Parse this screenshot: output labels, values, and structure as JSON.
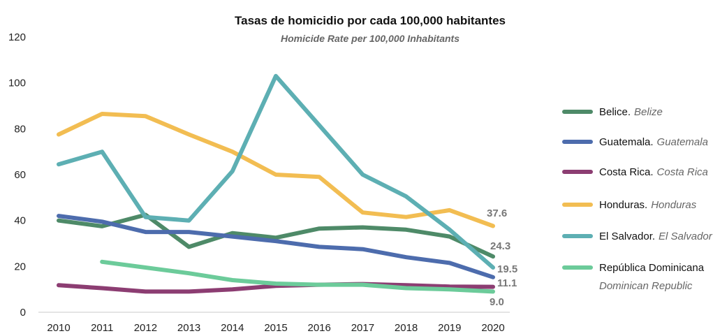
{
  "chart_data": {
    "type": "line",
    "title": "Tasas de homicidio por cada 100,000 habitantes",
    "subtitle": "Homicide Rate per 100,000 Inhabitants",
    "x": [
      2010,
      2011,
      2012,
      2013,
      2014,
      2015,
      2016,
      2017,
      2018,
      2019,
      2020
    ],
    "ylim": [
      0,
      120
    ],
    "yticks": [
      0,
      20,
      40,
      60,
      80,
      100,
      120
    ],
    "grid": false,
    "legend_position": "right",
    "series": [
      {
        "name": "Belice.",
        "name_en": "Belize",
        "color": "#4e8a68",
        "values": [
          40,
          37.5,
          42.5,
          28.5,
          34.5,
          32.5,
          36.5,
          37,
          36,
          33,
          24.3
        ],
        "end_label": "24.3"
      },
      {
        "name": "Guatemala.",
        "name_en": "Guatemala",
        "color": "#4d6cad",
        "values": [
          42,
          39.5,
          35,
          35,
          33,
          31,
          28.5,
          27.5,
          24,
          21.5,
          15.3
        ],
        "end_label": ""
      },
      {
        "name": "Costa Rica.",
        "name_en": "Costa Rica",
        "color": "#8c3d72",
        "values": [
          11.8,
          10.5,
          9,
          9,
          10,
          11.5,
          12,
          12.3,
          11.8,
          11.2,
          11.1
        ],
        "end_label": "11.1"
      },
      {
        "name": "Honduras.",
        "name_en": "Honduras",
        "color": "#f2bd52",
        "values": [
          77.5,
          86.5,
          85.5,
          77.5,
          70,
          60,
          59,
          43.5,
          41.5,
          44.5,
          37.6
        ],
        "end_label": "37.6"
      },
      {
        "name": "El Salvador.",
        "name_en": "El Salvador",
        "color": "#5dafb3",
        "values": [
          64.5,
          70,
          41.5,
          40,
          61.5,
          103,
          81.5,
          60,
          50.5,
          36,
          19.5
        ],
        "end_label": "19.5"
      },
      {
        "name": "República Dominicana",
        "name_en": "Dominican Republic",
        "color": "#6ccb9a",
        "values": [
          null,
          22,
          19.5,
          17,
          14,
          12.5,
          12,
          12,
          10.5,
          10,
          9.0
        ],
        "end_label": "9.0"
      }
    ]
  }
}
